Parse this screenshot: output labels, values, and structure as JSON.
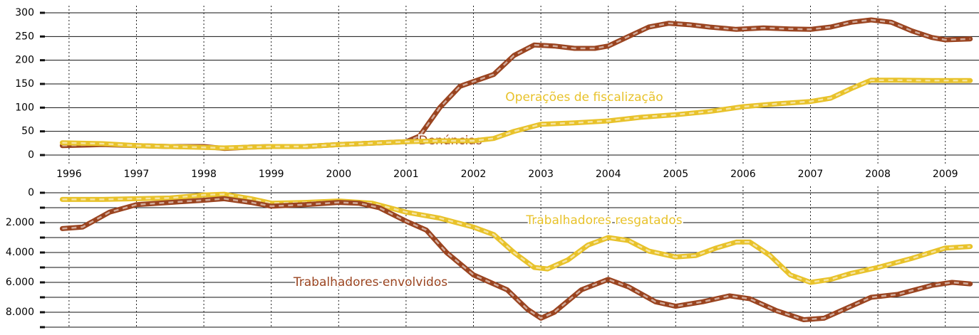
{
  "chart_data": [
    {
      "type": "line",
      "xlim": [
        1995.61,
        2009.5
      ],
      "xticks": [
        1996,
        1997,
        1998,
        1999,
        2000,
        2001,
        2002,
        2003,
        2004,
        2005,
        2006,
        2007,
        2008,
        2009
      ],
      "ylim": [
        0,
        300
      ],
      "yticks": [
        0,
        50,
        100,
        150,
        200,
        250,
        300
      ],
      "grid": true,
      "series": [
        {
          "name": "Denúncias",
          "color": "#9a4420",
          "x": [
            1995.9,
            1996.5,
            1997,
            1997.5,
            1998,
            1998.3,
            1998.7,
            1999,
            1999.5,
            2000,
            2000.5,
            2001,
            2001.2,
            2001.5,
            2001.8,
            2002,
            2002.3,
            2002.6,
            2002.9,
            2003.2,
            2003.5,
            2003.8,
            2004,
            2004.3,
            2004.6,
            2004.9,
            2005.2,
            2005.5,
            2005.9,
            2006.3,
            2006.7,
            2007,
            2007.3,
            2007.6,
            2007.9,
            2008.2,
            2008.5,
            2008.8,
            2009,
            2009.37
          ],
          "values": [
            20,
            22,
            20,
            18,
            18,
            14,
            17,
            18,
            18,
            22,
            25,
            28,
            40,
            100,
            145,
            155,
            170,
            210,
            232,
            230,
            225,
            225,
            230,
            250,
            270,
            278,
            275,
            270,
            265,
            268,
            266,
            265,
            270,
            280,
            285,
            280,
            262,
            248,
            243,
            245
          ]
        },
        {
          "name": "Operações de fiscalização",
          "color": "#e8c22a",
          "x": [
            1995.9,
            1996.5,
            1997,
            1997.5,
            1998,
            1998.3,
            1999,
            1999.5,
            2000,
            2000.5,
            2001,
            2001.5,
            2002,
            2002.3,
            2002.6,
            2003,
            2003.5,
            2004,
            2004.5,
            2005,
            2005.5,
            2006,
            2006.5,
            2007,
            2007.3,
            2007.6,
            2007.9,
            2008.3,
            2008.8,
            2009.37
          ],
          "values": [
            26,
            24,
            20,
            18,
            16,
            15,
            18,
            18,
            22,
            25,
            28,
            30,
            30,
            35,
            50,
            65,
            68,
            72,
            80,
            85,
            92,
            102,
            108,
            113,
            120,
            140,
            158,
            158,
            157,
            157
          ]
        }
      ]
    },
    {
      "type": "line",
      "xlim": [
        1995.61,
        2009.5
      ],
      "xticks": [
        1996,
        1997,
        1998,
        1999,
        2000,
        2001,
        2002,
        2003,
        2004,
        2005,
        2006,
        2007,
        2008,
        2009
      ],
      "ylim": [
        0,
        9000
      ],
      "inverted": true,
      "yticks": [
        0,
        {
          "value": 2000,
          "label": "2.000"
        },
        {
          "value": 4000,
          "label": "4.000"
        },
        {
          "value": 6000,
          "label": "6.000"
        },
        {
          "value": 8000,
          "label": "8.000"
        }
      ],
      "minor_yticks": [
        1000,
        3000,
        5000,
        7000,
        9000
      ],
      "grid": true,
      "series": [
        {
          "name": "Trabalhadores resgatados",
          "color": "#e8c22a",
          "x": [
            1995.9,
            1996.5,
            1997,
            1997.5,
            1998,
            1998.3,
            1998.7,
            1999,
            1999.5,
            2000,
            2000.5,
            2001,
            2001.5,
            2002,
            2002.3,
            2002.6,
            2002.9,
            2003.1,
            2003.4,
            2003.7,
            2004,
            2004.3,
            2004.6,
            2005,
            2005.3,
            2005.6,
            2005.9,
            2006.1,
            2006.4,
            2006.7,
            2007,
            2007.3,
            2007.6,
            2008,
            2008.5,
            2009,
            2009.37
          ],
          "values": [
            450,
            450,
            400,
            350,
            150,
            100,
            400,
            700,
            650,
            550,
            700,
            1300,
            1700,
            2300,
            2800,
            4000,
            5000,
            5100,
            4500,
            3500,
            3000,
            3200,
            3900,
            4300,
            4200,
            3700,
            3300,
            3300,
            4200,
            5500,
            6000,
            5800,
            5400,
            5000,
            4400,
            3700,
            3600
          ]
        },
        {
          "name": "Trabalhadores envolvidos",
          "color": "#9a4420",
          "x": [
            1995.9,
            1996.2,
            1996.6,
            1997,
            1997.5,
            1998,
            1998.3,
            1998.7,
            1999,
            1999.5,
            2000,
            2000.3,
            2000.6,
            2001,
            2001.3,
            2001.6,
            2002,
            2002.5,
            2002.8,
            2003,
            2003.2,
            2003.6,
            2004,
            2004.3,
            2004.7,
            2005,
            2005.4,
            2005.8,
            2006.1,
            2006.5,
            2006.9,
            2007.2,
            2007.5,
            2007.9,
            2008.3,
            2008.8,
            2009.1,
            2009.37
          ],
          "values": [
            2400,
            2300,
            1300,
            800,
            650,
            500,
            400,
            650,
            900,
            800,
            650,
            700,
            1000,
            1900,
            2500,
            4000,
            5500,
            6500,
            7800,
            8400,
            8000,
            6500,
            5800,
            6300,
            7300,
            7600,
            7300,
            6900,
            7100,
            7900,
            8500,
            8400,
            7800,
            7000,
            6800,
            6200,
            6000,
            6100
          ]
        }
      ]
    }
  ]
}
